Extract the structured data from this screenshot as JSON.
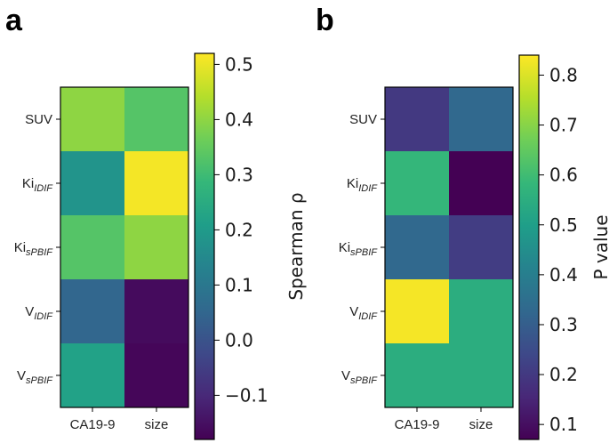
{
  "figure": {
    "panels": [
      {
        "letter": "a",
        "colorbar_label": "Spearman ρ"
      },
      {
        "letter": "b",
        "colorbar_label": "P value"
      }
    ]
  },
  "colormap": {
    "name": "viridis",
    "stops": [
      "#440154",
      "#482878",
      "#3e4989",
      "#31688e",
      "#26828e",
      "#1f9e89",
      "#35b779",
      "#6ece58",
      "#b5de2b",
      "#fde725"
    ]
  },
  "chart_data": [
    {
      "type": "heatmap",
      "panel": "a",
      "rows": [
        {
          "base": "SUV",
          "sub": ""
        },
        {
          "base": "Ki",
          "sub": "IDIF"
        },
        {
          "base": "Ki",
          "sub": "sPBIF"
        },
        {
          "base": "V",
          "sub": "IDIF"
        },
        {
          "base": "V",
          "sub": "sPBIF"
        }
      ],
      "columns": [
        "CA19-9",
        "size"
      ],
      "values": [
        [
          0.4,
          0.33
        ],
        [
          0.18,
          0.51
        ],
        [
          0.33,
          0.4
        ],
        [
          0.05,
          -0.16
        ],
        [
          0.22,
          -0.17
        ]
      ],
      "colorbar": {
        "label": "Spearman ρ",
        "range": [
          -0.18,
          0.52
        ],
        "ticks": [
          -0.1,
          0.0,
          0.1,
          0.2,
          0.3,
          0.4,
          0.5
        ],
        "tick_labels": [
          "−0.1",
          "0.0",
          "0.1",
          "0.2",
          "0.3",
          "0.4",
          "0.5"
        ]
      }
    },
    {
      "type": "heatmap",
      "panel": "b",
      "rows": [
        {
          "base": "SUV",
          "sub": ""
        },
        {
          "base": "Ki",
          "sub": "IDIF"
        },
        {
          "base": "Ki",
          "sub": "sPBIF"
        },
        {
          "base": "V",
          "sub": "IDIF"
        },
        {
          "base": "V",
          "sub": "sPBIF"
        }
      ],
      "columns": [
        "CA19-9",
        "size"
      ],
      "values": [
        [
          0.2,
          0.33
        ],
        [
          0.58,
          0.07
        ],
        [
          0.33,
          0.21
        ],
        [
          0.83,
          0.55
        ],
        [
          0.55,
          0.55
        ]
      ],
      "colorbar": {
        "label": "P value",
        "range": [
          0.07,
          0.84
        ],
        "ticks": [
          0.1,
          0.2,
          0.3,
          0.4,
          0.5,
          0.6,
          0.7,
          0.8
        ],
        "tick_labels": [
          "0.1",
          "0.2",
          "0.3",
          "0.4",
          "0.5",
          "0.6",
          "0.7",
          "0.8"
        ]
      }
    }
  ]
}
